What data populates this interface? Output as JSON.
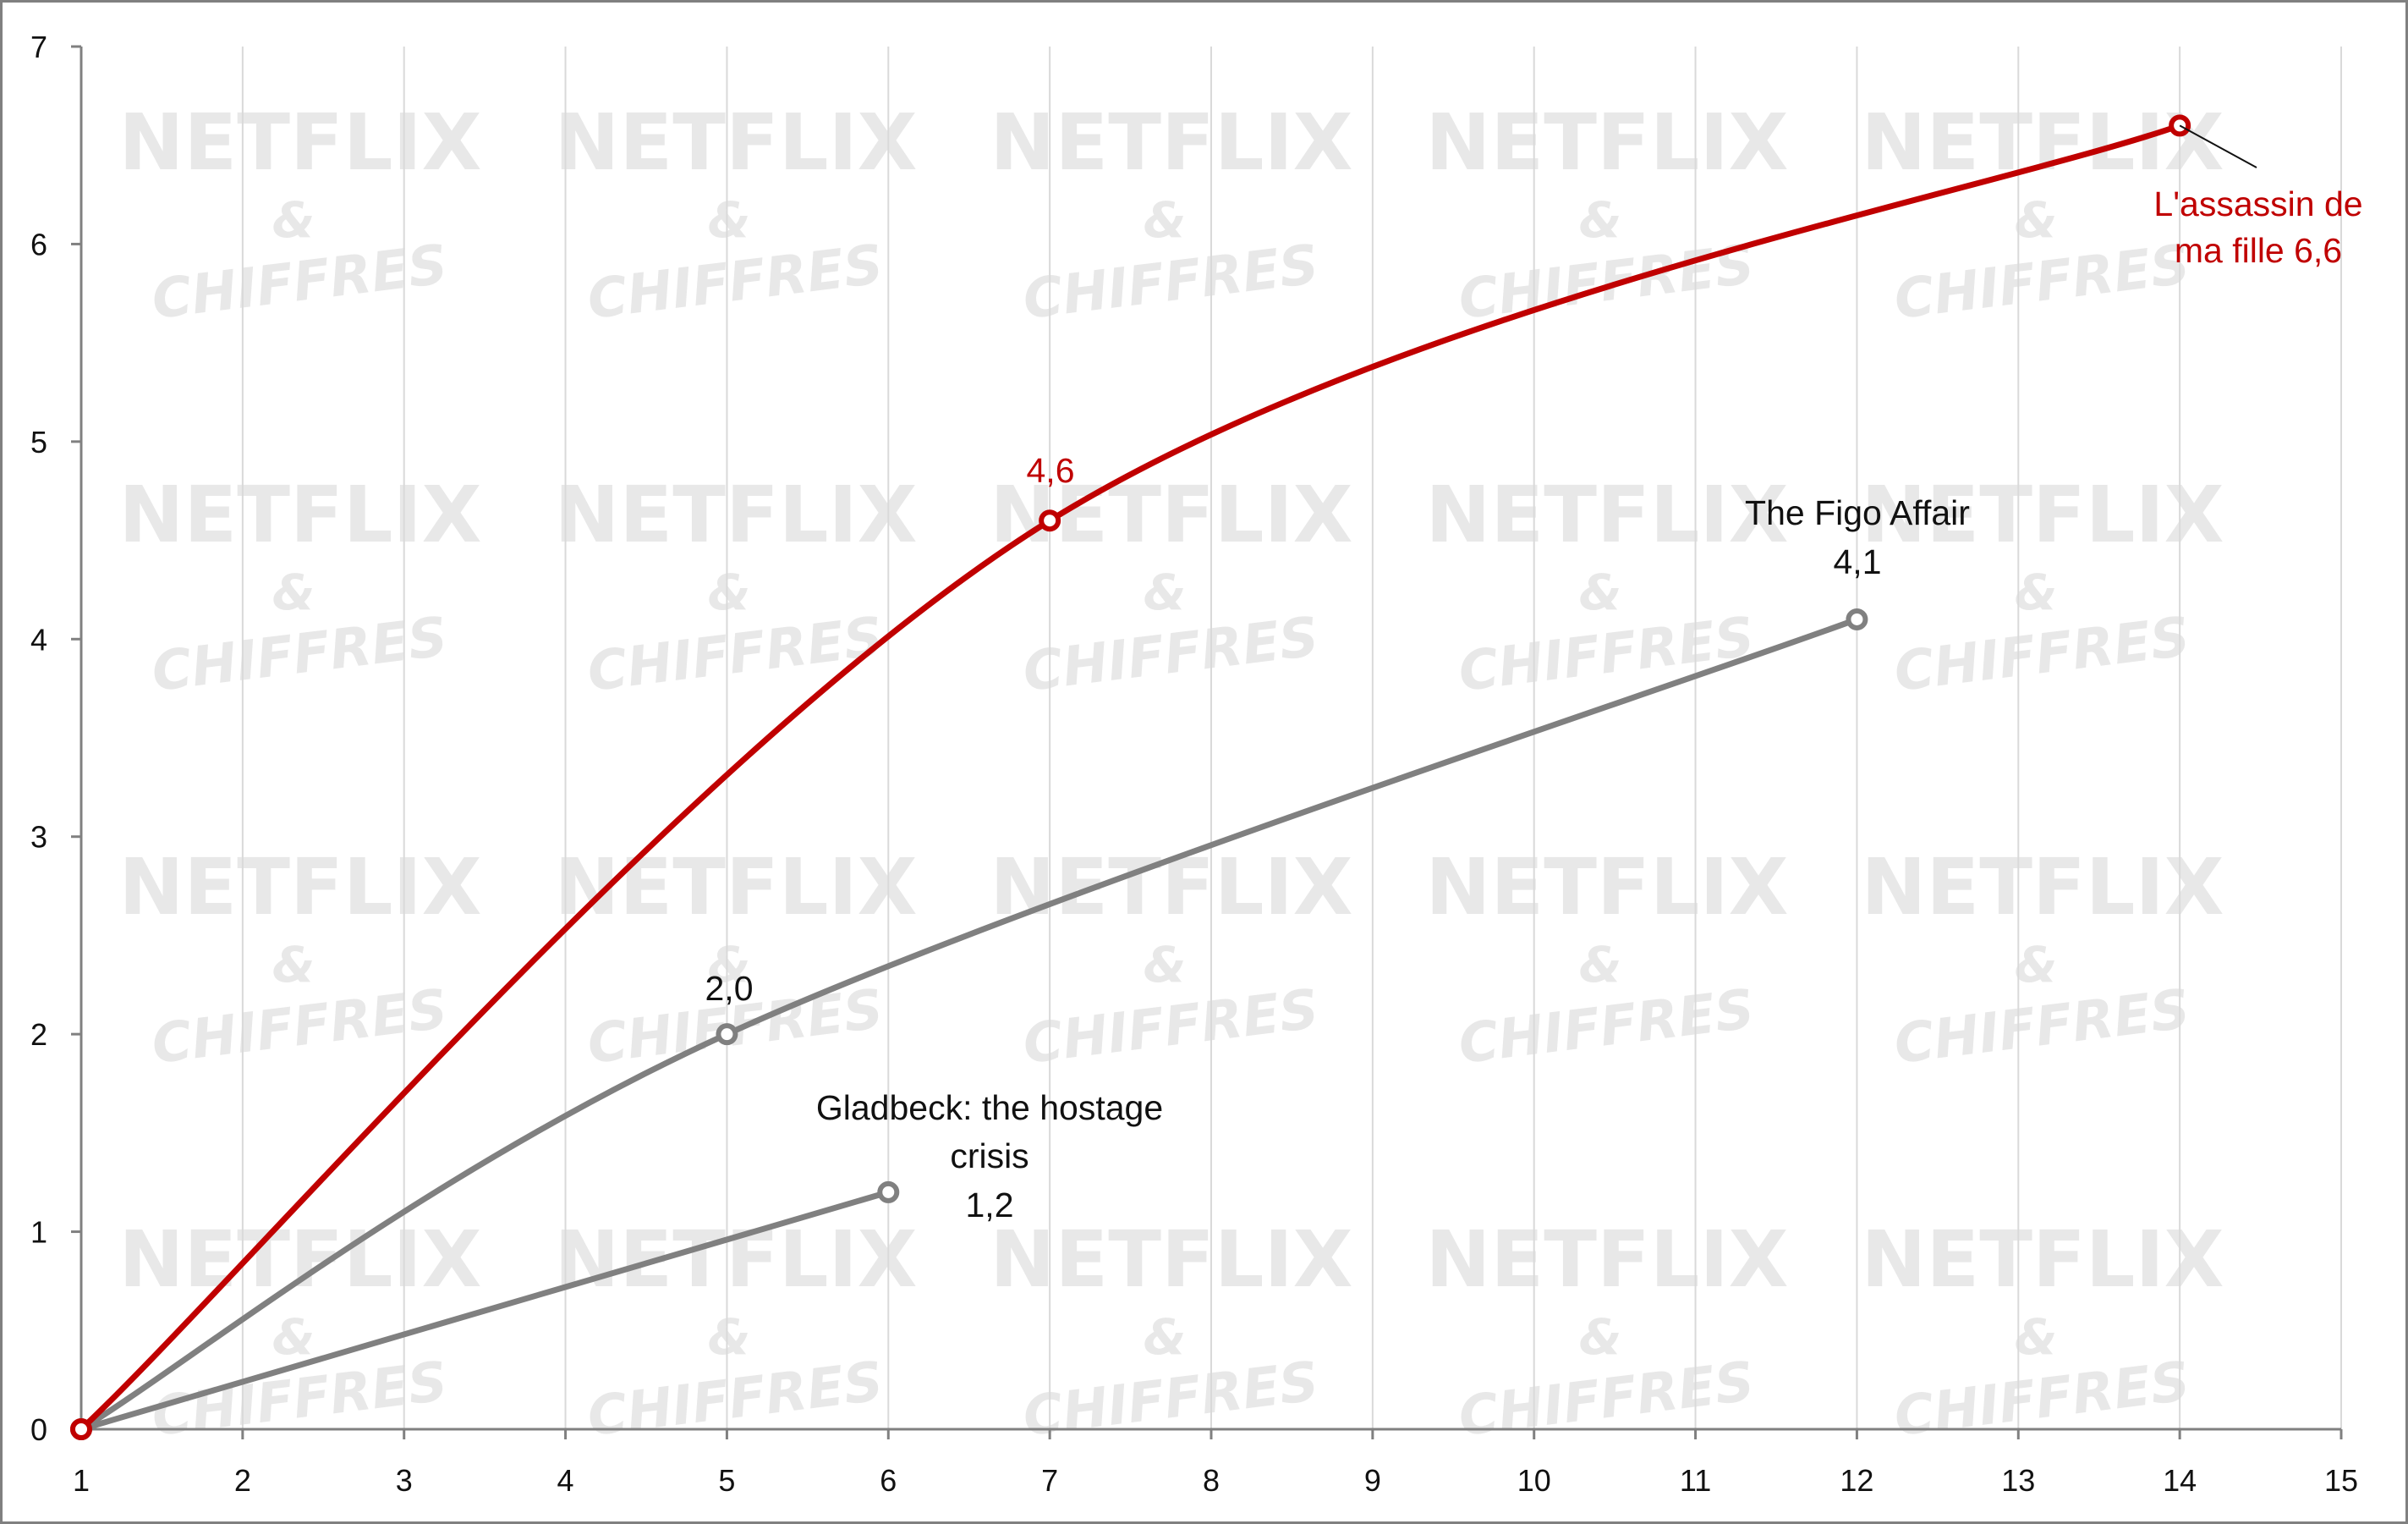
{
  "watermark": {
    "line1": "NETFLIX",
    "line2": "&",
    "line3": "CHIFFRES"
  },
  "colors": {
    "red": "#c00000",
    "gray": "#808080",
    "grid": "#d9d9d9",
    "axis": "#808080",
    "watermark": "#e8e8e8"
  },
  "chart_data": {
    "type": "line",
    "title": "",
    "xlabel": "",
    "ylabel": "",
    "xlim": [
      1,
      15
    ],
    "ylim": [
      0,
      7
    ],
    "x_ticks": [
      "1",
      "2",
      "3",
      "4",
      "5",
      "6",
      "7",
      "8",
      "9",
      "10",
      "11",
      "12",
      "13",
      "14",
      "15"
    ],
    "y_ticks": [
      "0",
      "1",
      "2",
      "3",
      "4",
      "5",
      "6",
      "7"
    ],
    "grid": "vertical",
    "legend": "none",
    "series": [
      {
        "color": "#c00000",
        "smooth": true,
        "points": [
          [
            1,
            0
          ],
          [
            7,
            4.6
          ],
          [
            14,
            6.6
          ]
        ],
        "markers": [
          [
            1,
            0
          ],
          [
            7,
            4.6
          ],
          [
            14,
            6.6
          ]
        ]
      },
      {
        "color": "#808080",
        "smooth": true,
        "points": [
          [
            1,
            0
          ],
          [
            5,
            2.0
          ],
          [
            12,
            4.1
          ]
        ],
        "markers": [
          [
            1,
            0
          ],
          [
            5,
            2.0
          ],
          [
            12,
            4.1
          ]
        ]
      },
      {
        "color": "#808080",
        "smooth": false,
        "points": [
          [
            1,
            0
          ],
          [
            6,
            1.2
          ]
        ],
        "markers": [
          [
            1,
            0
          ],
          [
            6,
            1.2
          ]
        ]
      }
    ],
    "annotations": [
      {
        "text": "4,6",
        "color": "#c00000"
      },
      {
        "text": "L'assassin de",
        "color": "#c00000"
      },
      {
        "text": "ma fille 6,6",
        "color": "#c00000"
      },
      {
        "text": "2,0",
        "color": "#111111"
      },
      {
        "text": "The Figo Affair",
        "color": "#111111"
      },
      {
        "text": "4,1",
        "color": "#111111"
      },
      {
        "text": "Gladbeck: the hostage",
        "color": "#111111"
      },
      {
        "text": "crisis",
        "color": "#111111"
      },
      {
        "text": "1,2",
        "color": "#111111"
      }
    ]
  }
}
